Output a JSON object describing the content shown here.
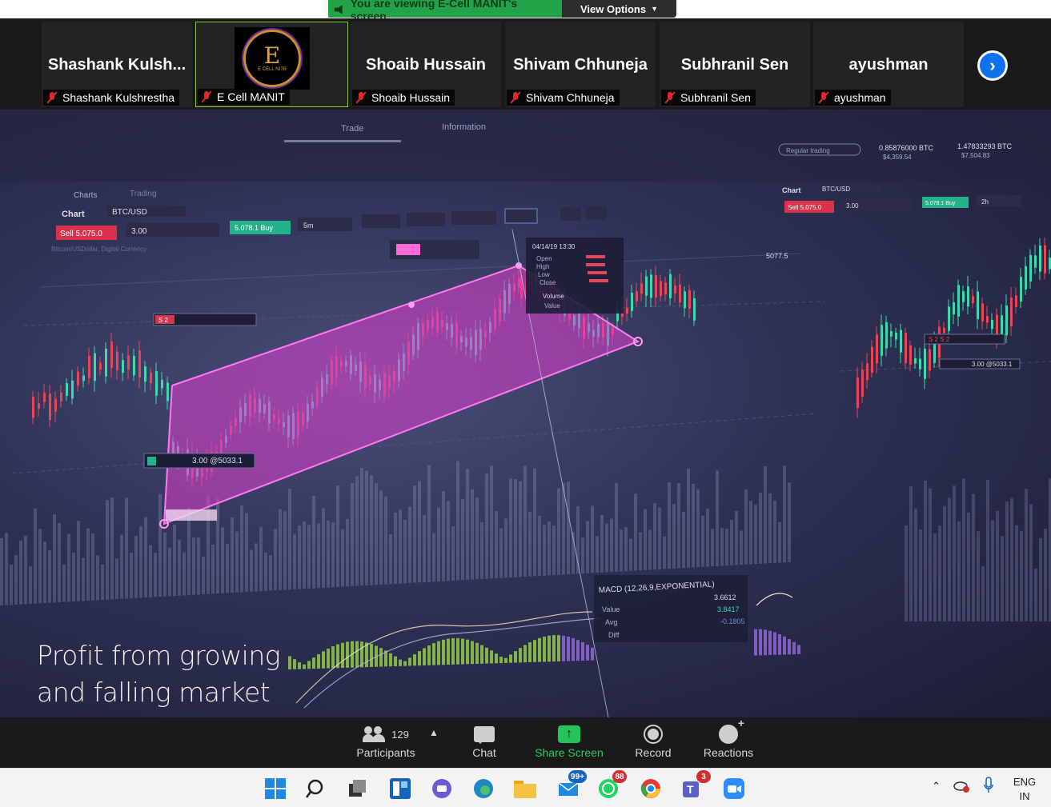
{
  "banner": {
    "viewing_text": "You are viewing E-Cell MANIT's screen",
    "view_options": "View Options"
  },
  "participants": [
    {
      "display": "Shashank  Kulsh...",
      "tag": "Shashank Kulshrestha"
    },
    {
      "display": "",
      "tag": "E  Cell MANIT",
      "logo_text": "E",
      "logo_sub": "E CELL NITB"
    },
    {
      "display": "Shoaib Hussain",
      "tag": "Shoaib Hussain"
    },
    {
      "display": "Shivam Chhuneja",
      "tag": "Shivam Chhuneja"
    },
    {
      "display": "Subhranil Sen",
      "tag": "Subhranil Sen"
    },
    {
      "display": "ayushman",
      "tag": "ayushman"
    }
  ],
  "next_icon": "chevron-right-icon",
  "screen": {
    "caption_line1": "Profit from growing",
    "caption_line2": "and falling market",
    "chart_header": {
      "tab_charts": "Charts",
      "tab_trading": "Trading",
      "chart_label": "Chart",
      "symbol": "BTC/USD",
      "sell": "Sell 5.075.0",
      "qty": "3.00",
      "buy": "5.078.1 Buy",
      "interval": "5m",
      "subtitle": "Bitcoin/USDollar, Digital Currency",
      "top_trade": "Trade",
      "top_info": "Information",
      "regular": "Regular trading"
    },
    "tooltip": {
      "date": "04/14/19 13:30",
      "rows": [
        "Open",
        "High",
        "Low",
        "Close"
      ],
      "volume": "Volume",
      "value": "Value"
    },
    "order_label": "3.00 @5033.1",
    "order_label_right": "3.00 @5033.1",
    "sell_tag": "S 2",
    "sell_tag_right": "S 2 S 2",
    "price_right": "5077.5",
    "right_panel": {
      "chart_label": "Chart",
      "symbol": "BTC/USD",
      "sell": "Sell 5.075.0",
      "qty": "3.00",
      "buy": "5.078.1 Buy",
      "interval": "2h",
      "balance": "0.85876000 BTC",
      "balance_usd": "$4,359.54",
      "equity": "1.47833293 BTC",
      "equity_usd": "$7,504.83"
    },
    "macd": {
      "title": "MACD (12,26,9,EXPONENTIAL)",
      "value_label": "Value",
      "avg_label": "Avg",
      "diff_label": "Diff",
      "value": "3.6612",
      "avg": "3.8417",
      "diff": "-0.1805"
    }
  },
  "toolbar": {
    "participants_count": "129",
    "participants": "Participants",
    "chat": "Chat",
    "share_screen": "Share Screen",
    "record": "Record",
    "reactions": "Reactions"
  },
  "taskbar": {
    "mail_badge": "99+",
    "whatsapp_badge": "88",
    "teams_badge": "3",
    "lang_top": "ENG",
    "lang_bottom": "IN"
  },
  "colors": {
    "zoom_green": "#23a347",
    "zoom_blue": "#0e72ed",
    "chart_magenta": "#e040d0",
    "candle_up": "#3fd6b0",
    "candle_down": "#e8445a"
  }
}
